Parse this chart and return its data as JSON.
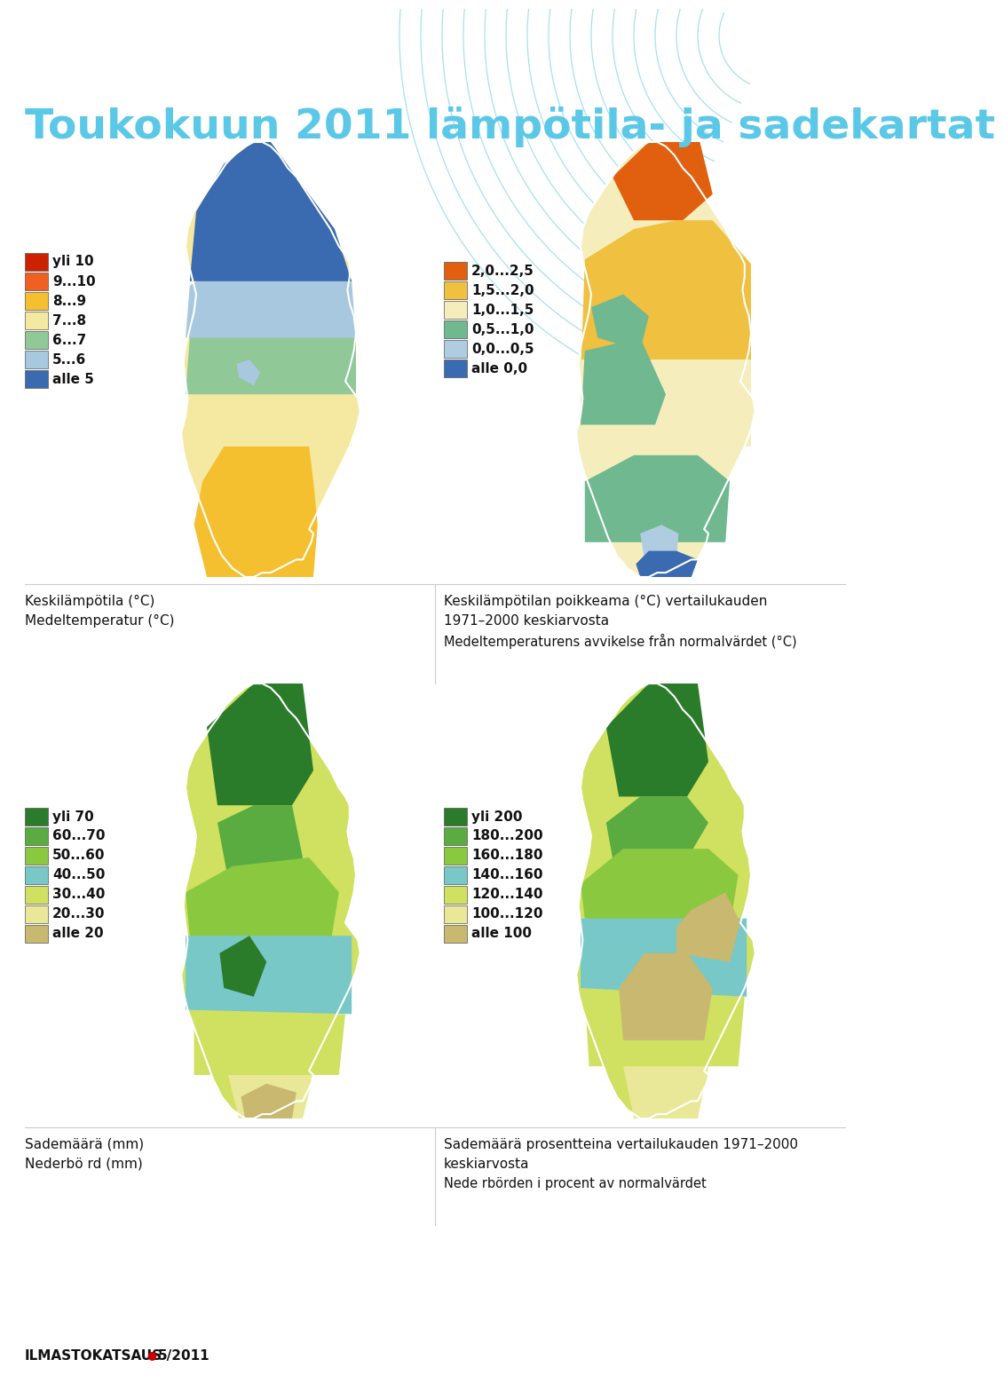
{
  "title": "Toukokuun 2011 lämpötila- ja sadekartat",
  "title_color": "#5bc8e8",
  "background_color": "#ffffff",
  "legend1_items": [
    {
      "color": "#cc2200",
      "label": "yli 10"
    },
    {
      "color": "#f06020",
      "label": "9...10"
    },
    {
      "color": "#f5c030",
      "label": "8...9"
    },
    {
      "color": "#f5e8a0",
      "label": "7...8"
    },
    {
      "color": "#90c898",
      "label": "6...7"
    },
    {
      "color": "#a8c8e0",
      "label": "5...6"
    },
    {
      "color": "#3a6ab0",
      "label": "alle 5"
    }
  ],
  "legend2_items": [
    {
      "color": "#e06010",
      "label": "2,0...2,5"
    },
    {
      "color": "#f0c040",
      "label": "1,5...2,0"
    },
    {
      "color": "#f5eebc",
      "label": "1,0...1,5"
    },
    {
      "color": "#70b890",
      "label": "0,5...1,0"
    },
    {
      "color": "#b0cce0",
      "label": "0,0...0,5"
    },
    {
      "color": "#3a6ab0",
      "label": "alle 0,0"
    }
  ],
  "legend3_items": [
    {
      "color": "#2a7c2a",
      "label": "yli 70"
    },
    {
      "color": "#5aac40",
      "label": "60...70"
    },
    {
      "color": "#8ac840",
      "label": "50...60"
    },
    {
      "color": "#78c8c8",
      "label": "40...50"
    },
    {
      "color": "#d0e060",
      "label": "30...40"
    },
    {
      "color": "#e8e898",
      "label": "20...30"
    },
    {
      "color": "#c8b870",
      "label": "alle 20"
    }
  ],
  "legend4_items": [
    {
      "color": "#2a7c2a",
      "label": "yli 200"
    },
    {
      "color": "#5aac40",
      "label": "180...200"
    },
    {
      "color": "#8ac840",
      "label": "160...180"
    },
    {
      "color": "#78c8c8",
      "label": "140...160"
    },
    {
      "color": "#d0e060",
      "label": "120...140"
    },
    {
      "color": "#e8e898",
      "label": "100...120"
    },
    {
      "color": "#c8b870",
      "label": "alle 100"
    }
  ],
  "caption1_line1": "Keskilämpötila (°C)",
  "caption1_line2": "Medeltemperatur (°C)",
  "caption2_line1": "Keskilämpötilan poikkeama (°C) vertailukauden",
  "caption2_line2": "1971–2000 keskiarvosta",
  "caption2_line3": "Medeltemperaturens avvikelse från normalvärdet (°C)",
  "caption3_line1": "Sademäärä (mm)",
  "caption3_line2": "Nederbö rd (mm)",
  "caption4_line1": "Sademäärä prosentteina vertailukauden 1971–2000",
  "caption4_line2": "keskiarvosta",
  "caption4_line3": "Nede rbörden i procent av normalvärdet",
  "footer_text": "ILMASTOKATSAUS",
  "footer_bullet": "●",
  "footer_issue": "5/2011"
}
